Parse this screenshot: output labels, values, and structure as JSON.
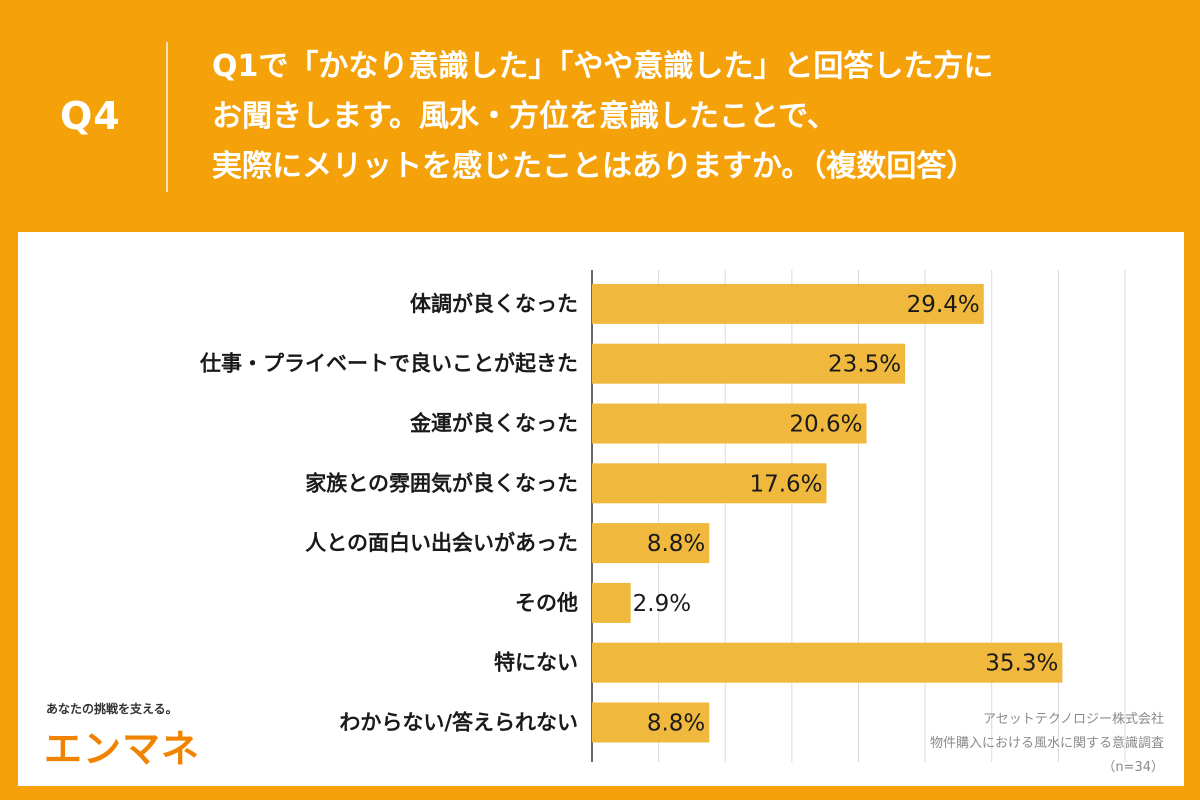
{
  "header": {
    "question_number": "Q4",
    "question_lines": [
      "Q1で「かなり意識した」「やや意識した」と回答した方に",
      "お聞きします。風水・方位を意識したことで、",
      "実際にメリットを感じたことはありますか。（複数回答）"
    ]
  },
  "chart_data": {
    "type": "bar",
    "orientation": "horizontal",
    "categories": [
      "体調が良くなった",
      "仕事・プライベートで良いことが起きた",
      "金運が良くなった",
      "家族との雰囲気が良くなった",
      "人との面白い出会いがあった",
      "その他",
      "特にない",
      "わからない/答えられない"
    ],
    "values": [
      29.4,
      23.5,
      20.6,
      17.6,
      8.8,
      2.9,
      35.3,
      8.8
    ],
    "value_labels": [
      "29.4%",
      "23.5%",
      "20.6%",
      "17.6%",
      "8.8%",
      "2.9%",
      "35.3%",
      "8.8%"
    ],
    "xlim": [
      0,
      40
    ],
    "grid": true,
    "bar_color": "#f0b93d"
  },
  "logo": {
    "tagline": "あなたの挑戦を支える。",
    "name": "エンマネ",
    "color": "#f08300"
  },
  "source": {
    "company": "アセットテクノロジー株式会社",
    "survey": "物件購入における風水に関する意識調査",
    "sample": "（n=34）"
  }
}
